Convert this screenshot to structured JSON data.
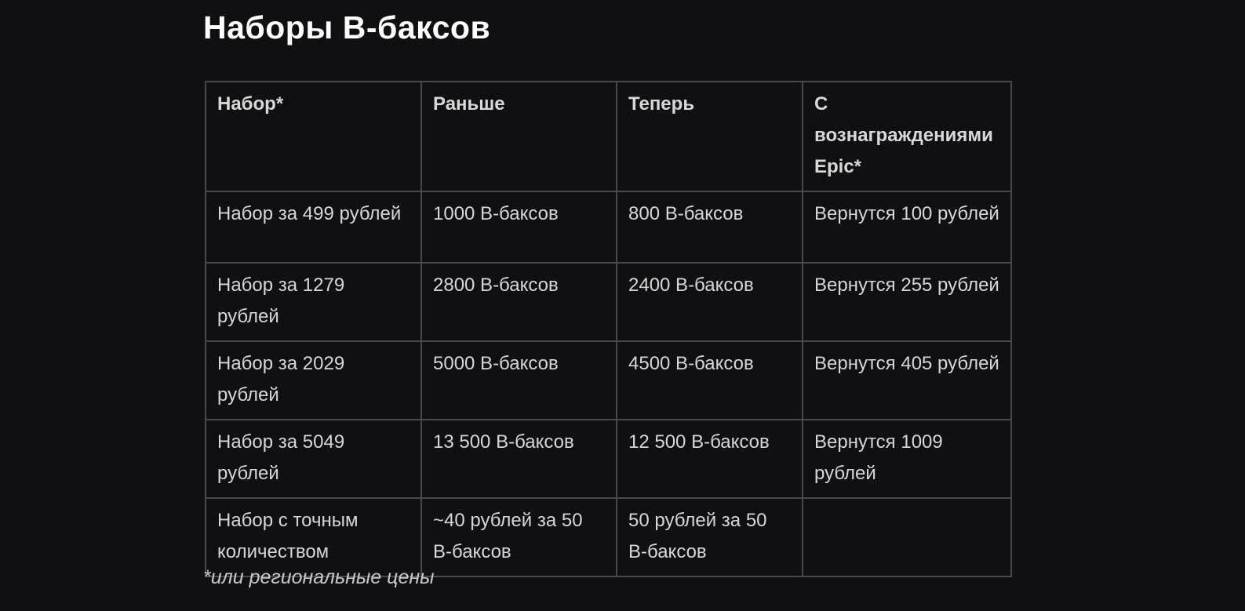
{
  "title": "Наборы В-баксов",
  "table": {
    "headers": [
      "Набор*",
      "Раньше",
      "Теперь",
      "С вознаграждениями Epic*"
    ],
    "rows": [
      [
        "Набор за 499 рублей",
        "1000 В-баксов",
        "800 В-баксов",
        "Вернутся 100 рублей"
      ],
      [
        "Набор за 1279 рублей",
        "2800 В-баксов",
        "2400 В-баксов",
        "Вернутся 255 рублей"
      ],
      [
        "Набор за 2029 рублей",
        "5000 В-баксов",
        "4500 В-баксов",
        "Вернутся 405 рублей"
      ],
      [
        "Набор за 5049 рублей",
        "13 500 В-баксов",
        "12 500 В-баксов",
        "Вернутся 1009 рублей"
      ],
      [
        "Набор с точным количеством",
        "~40 рублей за 50 В-баксов",
        "50 рублей за 50 В-баксов",
        ""
      ]
    ]
  },
  "footnote": "*или региональные цены"
}
